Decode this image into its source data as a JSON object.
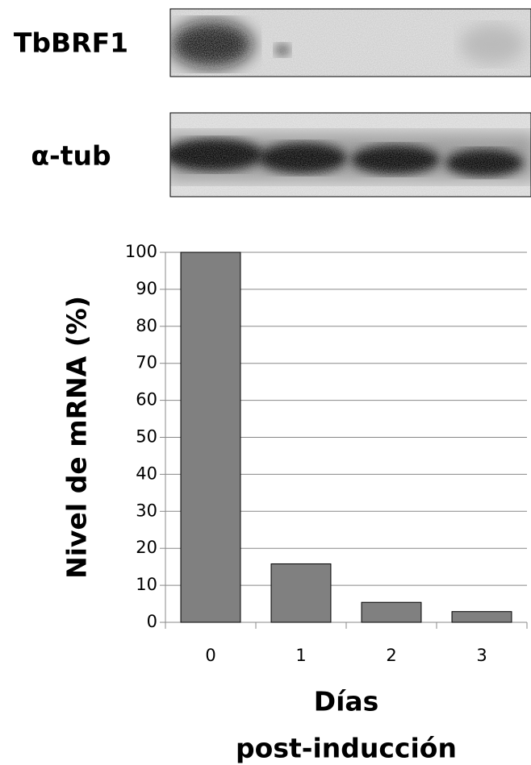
{
  "blots": [
    {
      "label": "TbBRF1"
    },
    {
      "label": "α-tub"
    }
  ],
  "chart_data": {
    "type": "bar",
    "categories": [
      "0",
      "1",
      "2",
      "3"
    ],
    "values": [
      100,
      15.8,
      5.4,
      2.9
    ],
    "color": "#808080",
    "ylim": [
      0,
      100
    ],
    "yticks": [
      0,
      10,
      20,
      30,
      40,
      50,
      60,
      70,
      80,
      90,
      100
    ],
    "grid": true,
    "ylabel": "Nivel de mRNA (%)",
    "xlabel": [
      "Días",
      "post-inducción"
    ]
  }
}
